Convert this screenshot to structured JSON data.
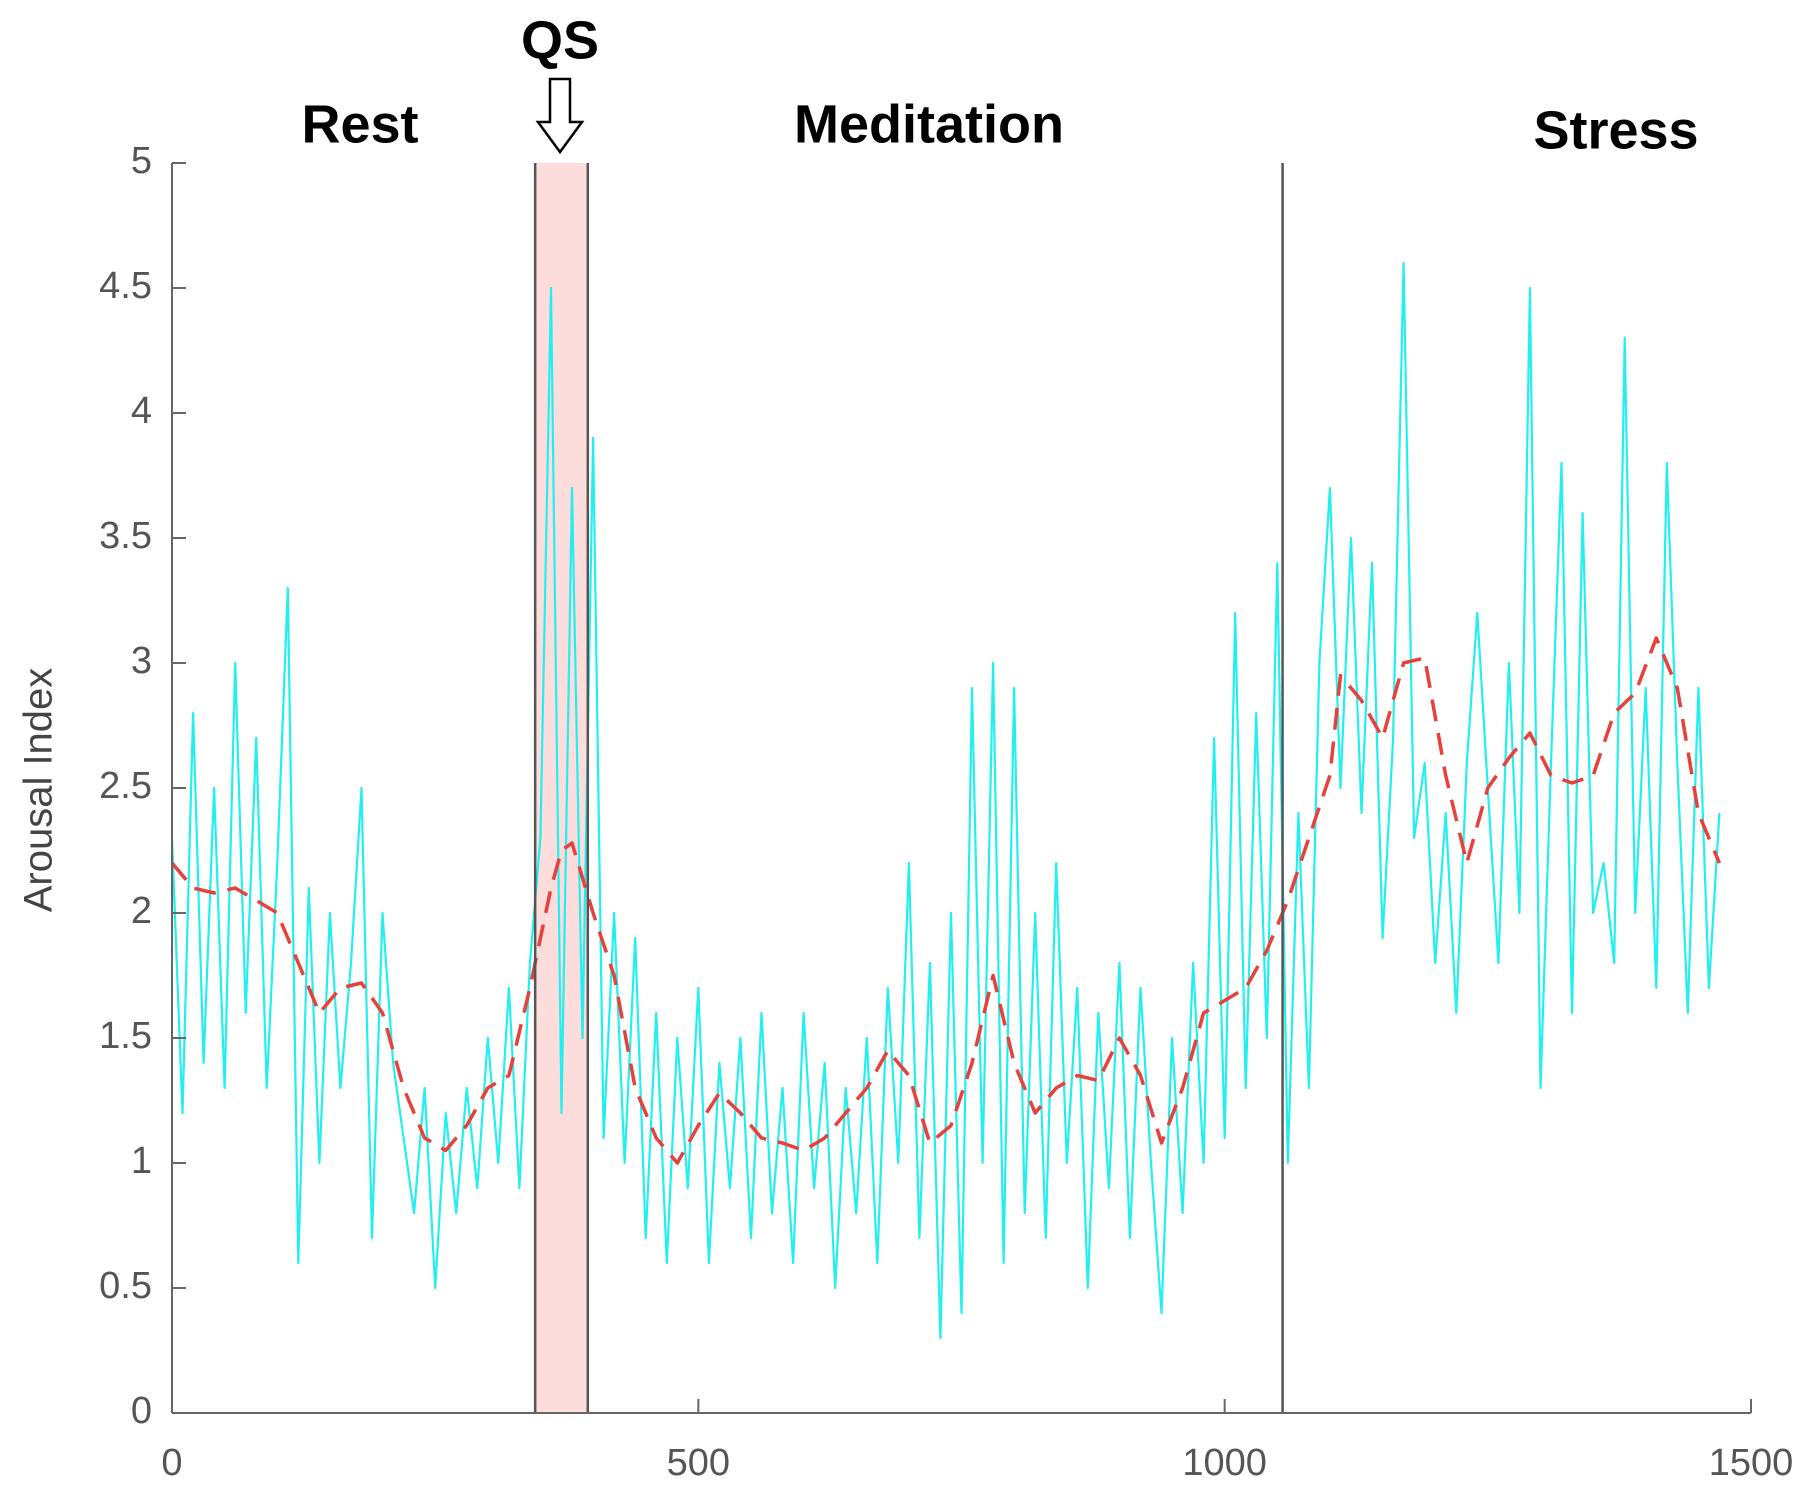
{
  "chart_data": {
    "type": "line",
    "y_label": "Arousal Index",
    "annotations": [
      "Rest",
      "QS",
      "Meditation",
      "Stress"
    ],
    "highlight": [
      345,
      395
    ],
    "highlight_color": "#fddcdc",
    "phase_lines": [
      345,
      395,
      1055
    ],
    "xlim": [
      0,
      1500
    ],
    "xticks": [
      0,
      500,
      1000,
      1500
    ],
    "ylim": [
      0,
      5
    ],
    "yticks": [
      0,
      0.5,
      1,
      1.5,
      2,
      2.5,
      3,
      3.5,
      4,
      4.5,
      5
    ],
    "series": [
      {
        "color": "#22f0f0",
        "dashed": false,
        "x": [
          0,
          10,
          20,
          30,
          40,
          50,
          60,
          70,
          80,
          90,
          100,
          110,
          120,
          130,
          140,
          150,
          160,
          170,
          180,
          190,
          200,
          210,
          220,
          230,
          240,
          250,
          260,
          270,
          280,
          290,
          300,
          310,
          320,
          330,
          340,
          350,
          360,
          370,
          380,
          390,
          400,
          410,
          420,
          430,
          440,
          450,
          460,
          470,
          480,
          490,
          500,
          510,
          520,
          530,
          540,
          550,
          560,
          570,
          580,
          590,
          600,
          610,
          620,
          630,
          640,
          650,
          660,
          670,
          680,
          690,
          700,
          710,
          720,
          730,
          740,
          750,
          760,
          770,
          780,
          790,
          800,
          810,
          820,
          830,
          840,
          850,
          860,
          870,
          880,
          890,
          900,
          910,
          920,
          930,
          940,
          950,
          960,
          970,
          980,
          990,
          1000,
          1010,
          1020,
          1030,
          1040,
          1050,
          1060,
          1070,
          1080,
          1090,
          1100,
          1110,
          1120,
          1130,
          1140,
          1150,
          1160,
          1170,
          1180,
          1190,
          1200,
          1210,
          1220,
          1230,
          1240,
          1250,
          1260,
          1270,
          1280,
          1290,
          1300,
          1310,
          1320,
          1330,
          1340,
          1350,
          1360,
          1370,
          1380,
          1390,
          1400,
          1410,
          1420,
          1430,
          1440,
          1450,
          1460,
          1470
        ],
        "values": [
          2.3,
          1.2,
          2.8,
          1.4,
          2.5,
          1.3,
          3.0,
          1.6,
          2.7,
          1.3,
          2.2,
          3.3,
          0.6,
          2.1,
          1.0,
          2.0,
          1.3,
          1.8,
          2.5,
          0.7,
          2.0,
          1.4,
          1.1,
          0.8,
          1.3,
          0.5,
          1.2,
          0.8,
          1.3,
          0.9,
          1.5,
          1.0,
          1.7,
          0.9,
          1.8,
          2.3,
          4.5,
          1.2,
          3.7,
          1.5,
          3.9,
          1.1,
          2.0,
          1.0,
          1.9,
          0.7,
          1.6,
          0.6,
          1.5,
          0.9,
          1.7,
          0.6,
          1.4,
          0.9,
          1.5,
          0.7,
          1.6,
          0.8,
          1.3,
          0.6,
          1.6,
          0.9,
          1.4,
          0.5,
          1.3,
          0.8,
          1.5,
          0.6,
          1.7,
          1.0,
          2.2,
          0.7,
          1.8,
          0.3,
          2.0,
          0.4,
          2.9,
          1.0,
          3.0,
          0.6,
          2.9,
          0.8,
          2.0,
          0.7,
          2.2,
          1.0,
          1.7,
          0.5,
          1.6,
          0.9,
          1.8,
          0.7,
          1.7,
          1.0,
          0.4,
          1.5,
          0.8,
          1.8,
          1.0,
          2.7,
          1.1,
          3.2,
          1.3,
          2.8,
          1.5,
          3.4,
          1.0,
          2.4,
          1.3,
          3.0,
          3.7,
          2.5,
          3.5,
          2.4,
          3.4,
          1.9,
          2.7,
          4.6,
          2.3,
          2.6,
          1.8,
          2.4,
          1.6,
          2.6,
          3.2,
          2.5,
          1.8,
          3.0,
          2.0,
          4.5,
          1.3,
          2.6,
          3.8,
          1.6,
          3.6,
          2.0,
          2.2,
          1.8,
          4.3,
          2.0,
          2.9,
          1.7,
          3.8,
          2.6,
          1.6,
          2.9,
          1.7,
          2.4
        ]
      },
      {
        "color": "#e8403a",
        "dashed": true,
        "x": [
          0,
          20,
          40,
          60,
          80,
          100,
          120,
          140,
          160,
          180,
          200,
          220,
          240,
          260,
          280,
          300,
          320,
          340,
          360,
          370,
          380,
          400,
          420,
          440,
          460,
          480,
          500,
          520,
          540,
          560,
          580,
          600,
          620,
          640,
          660,
          680,
          700,
          720,
          740,
          760,
          780,
          800,
          820,
          840,
          860,
          880,
          900,
          920,
          940,
          960,
          980,
          1000,
          1020,
          1040,
          1060,
          1080,
          1100,
          1110,
          1130,
          1150,
          1170,
          1190,
          1210,
          1230,
          1250,
          1270,
          1290,
          1310,
          1330,
          1350,
          1370,
          1390,
          1410,
          1430,
          1450,
          1470
        ],
        "values": [
          2.2,
          2.1,
          2.08,
          2.1,
          2.05,
          2.0,
          1.8,
          1.6,
          1.7,
          1.72,
          1.6,
          1.3,
          1.1,
          1.05,
          1.15,
          1.3,
          1.35,
          1.7,
          2.1,
          2.25,
          2.28,
          2.0,
          1.75,
          1.3,
          1.1,
          1.0,
          1.15,
          1.28,
          1.2,
          1.1,
          1.08,
          1.05,
          1.1,
          1.2,
          1.3,
          1.45,
          1.35,
          1.08,
          1.15,
          1.4,
          1.75,
          1.4,
          1.2,
          1.3,
          1.35,
          1.33,
          1.5,
          1.35,
          1.08,
          1.3,
          1.6,
          1.65,
          1.7,
          1.85,
          2.05,
          2.3,
          2.55,
          2.95,
          2.85,
          2.7,
          3.0,
          3.02,
          2.55,
          2.2,
          2.5,
          2.62,
          2.72,
          2.55,
          2.52,
          2.55,
          2.8,
          2.88,
          3.1,
          2.9,
          2.4,
          2.2
        ]
      }
    ]
  }
}
